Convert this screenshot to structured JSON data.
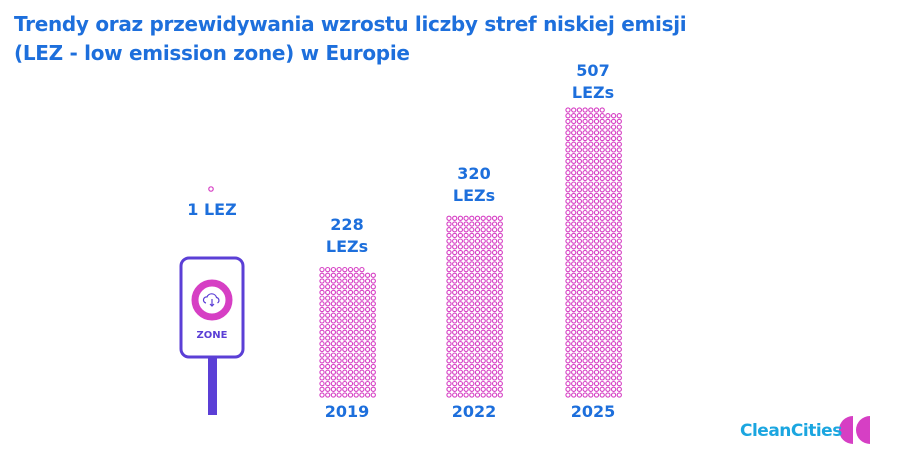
{
  "title_line1": "Trendy oraz przewidywania wzrostu liczby stref niskiej emisji",
  "title_line2": "(LEZ - low emission zone) w Europie",
  "chart_data": {
    "type": "bar",
    "style": "dot columns (one dot per LEZ)",
    "categories": [
      "",
      "2019",
      "2022",
      "2025"
    ],
    "values": [
      1,
      228,
      320,
      507
    ],
    "value_labels": [
      "1 LEZ",
      "228 LEZs",
      "320 LEZs",
      "507 LEZs"
    ],
    "dot_color": "#d63fc4",
    "label_color": "#1d6fdc"
  },
  "sign": {
    "text": "ZONE",
    "frame_color": "#5b3fd6",
    "ring_color": "#d63fc4",
    "icon": "cloud-download-icon"
  },
  "logo": {
    "text": "CleanCities",
    "mark_color": "#d63fc4"
  }
}
